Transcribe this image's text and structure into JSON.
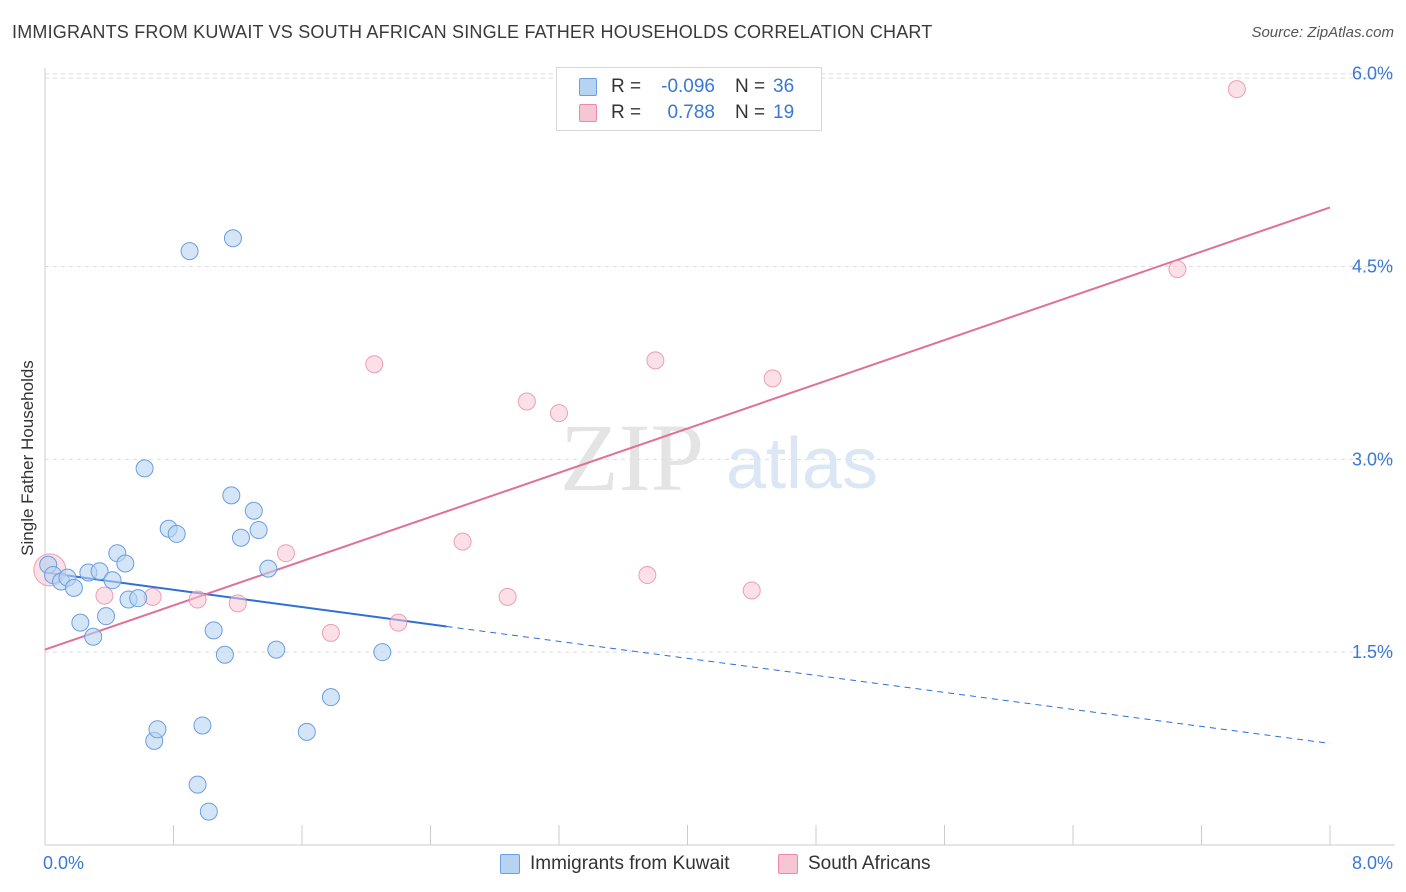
{
  "header": {
    "title": "IMMIGRANTS FROM KUWAIT VS SOUTH AFRICAN SINGLE FATHER HOUSEHOLDS CORRELATION CHART",
    "source": "Source: ZipAtlas.com"
  },
  "watermark": {
    "part1": "ZIP",
    "part2": "atlas"
  },
  "legend_top": {
    "rows": [
      {
        "r_label": "R =",
        "r_value": "-0.096",
        "n_label": "N =",
        "n_value": "36"
      },
      {
        "r_label": "R =",
        "r_value": "0.788",
        "n_label": "N =",
        "n_value": "19"
      }
    ]
  },
  "colors": {
    "blue_fill": "#b7d3f2",
    "blue_stroke": "#6a9ee0",
    "blue_line": "#2f6fd6",
    "pink_fill": "#f7c6d4",
    "pink_stroke": "#e88aa8",
    "pink_line": "#e0709a",
    "tick_label": "#3a78d6",
    "grid": "#dddddd"
  },
  "chart_data": {
    "type": "scatter",
    "title": "IMMIGRANTS FROM KUWAIT VS SOUTH AFRICAN SINGLE FATHER HOUSEHOLDS CORRELATION CHART",
    "xlabel": "",
    "ylabel": "Single Father Households",
    "xlim": [
      0,
      8
    ],
    "ylim": [
      0,
      6.2
    ],
    "x_tick_labels": [
      "0.0%",
      "8.0%"
    ],
    "y_tick_labels": [
      "1.5%",
      "3.0%",
      "4.5%",
      "6.0%"
    ],
    "y_ticks": [
      1.5,
      3.0,
      4.5,
      6.0
    ],
    "grid": "horizontal dashed",
    "legend_position": "top-center and bottom",
    "series": [
      {
        "name": "Immigrants from Kuwait",
        "color": "#6a9ee0",
        "points": [
          [
            0.02,
            2.18
          ],
          [
            0.05,
            2.1
          ],
          [
            0.1,
            2.05
          ],
          [
            0.14,
            2.08
          ],
          [
            0.18,
            2.0
          ],
          [
            0.22,
            1.73
          ],
          [
            0.27,
            2.12
          ],
          [
            0.3,
            1.62
          ],
          [
            0.34,
            2.13
          ],
          [
            0.38,
            1.78
          ],
          [
            0.42,
            2.06
          ],
          [
            0.45,
            2.27
          ],
          [
            0.5,
            2.19
          ],
          [
            0.52,
            1.91
          ],
          [
            0.58,
            1.92
          ],
          [
            0.62,
            2.93
          ],
          [
            0.68,
            0.81
          ],
          [
            0.7,
            0.9
          ],
          [
            0.77,
            2.46
          ],
          [
            0.82,
            2.42
          ],
          [
            0.9,
            4.62
          ],
          [
            0.95,
            0.47
          ],
          [
            0.98,
            0.93
          ],
          [
            1.02,
            0.26
          ],
          [
            1.05,
            1.67
          ],
          [
            1.12,
            1.48
          ],
          [
            1.16,
            2.72
          ],
          [
            1.17,
            4.72
          ],
          [
            1.22,
            2.39
          ],
          [
            1.3,
            2.6
          ],
          [
            1.33,
            2.45
          ],
          [
            1.39,
            2.15
          ],
          [
            1.44,
            1.52
          ],
          [
            1.63,
            0.88
          ],
          [
            1.78,
            1.15
          ],
          [
            2.1,
            1.5
          ]
        ]
      },
      {
        "name": "South Africans",
        "color": "#e88aa8",
        "points": [
          [
            0.03,
            2.14
          ],
          [
            0.37,
            1.94
          ],
          [
            0.67,
            1.93
          ],
          [
            0.95,
            1.91
          ],
          [
            1.2,
            1.88
          ],
          [
            1.5,
            2.27
          ],
          [
            1.78,
            1.65
          ],
          [
            2.05,
            3.74
          ],
          [
            2.2,
            1.73
          ],
          [
            2.6,
            2.36
          ],
          [
            2.88,
            1.93
          ],
          [
            3.0,
            3.45
          ],
          [
            3.2,
            3.36
          ],
          [
            3.75,
            2.1
          ],
          [
            3.8,
            3.77
          ],
          [
            4.4,
            1.98
          ],
          [
            4.53,
            3.63
          ],
          [
            7.05,
            4.48
          ],
          [
            7.42,
            5.88
          ]
        ]
      }
    ],
    "trend_lines": [
      {
        "series": "Immigrants from Kuwait",
        "x0": 0.0,
        "y0": 2.12,
        "x1": 2.5,
        "y1": 1.7,
        "dashed_to_x": 8.0,
        "dashed_to_y": 0.79
      },
      {
        "series": "South Africans",
        "x0": 0.0,
        "y0": 1.52,
        "x1": 8.0,
        "y1": 4.96
      }
    ]
  },
  "legend_bottom": [
    {
      "label": "Immigrants from Kuwait"
    },
    {
      "label": "South Africans"
    }
  ]
}
